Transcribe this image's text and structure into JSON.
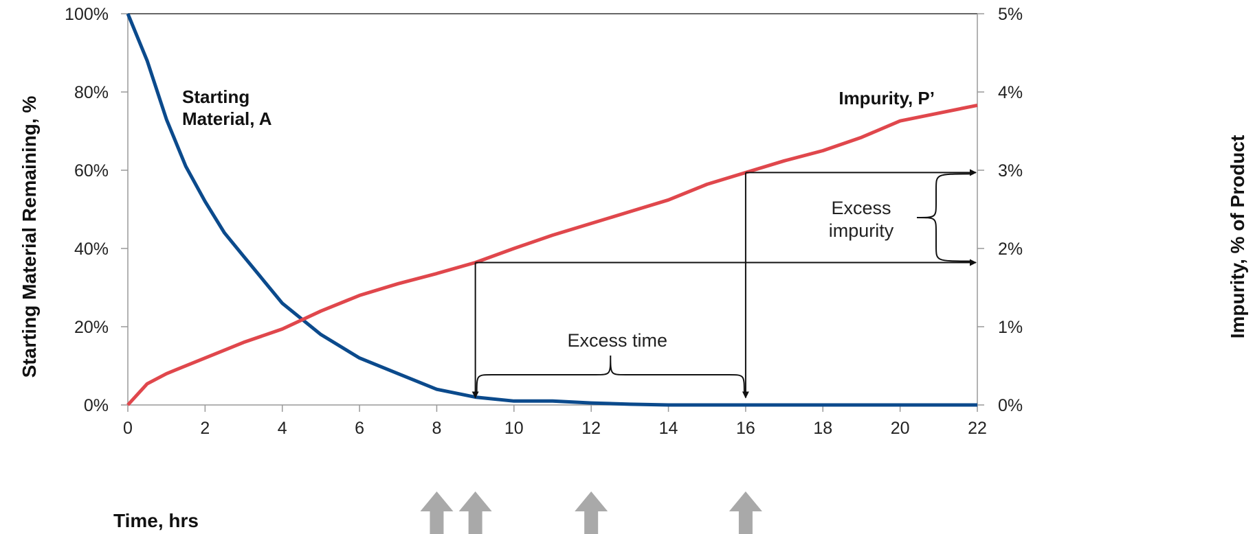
{
  "chart_data": {
    "type": "line",
    "x_label": "Time, hrs",
    "y_left_label": "Starting Material Remaining, %",
    "y_right_label": "Impurity, % of Product",
    "x_ticks": [
      "0",
      "2",
      "4",
      "6",
      "8",
      "10",
      "12",
      "14",
      "16",
      "18",
      "20",
      "22"
    ],
    "y_left_ticks": [
      "0%",
      "20%",
      "40%",
      "60%",
      "80%",
      "100%"
    ],
    "y_right_ticks": [
      "0%",
      "1%",
      "2%",
      "3%",
      "4%",
      "5%"
    ],
    "xlim": [
      0,
      22
    ],
    "ylim_left": [
      0,
      100
    ],
    "ylim_right": [
      0,
      5
    ],
    "series": [
      {
        "label_lines": [
          "Starting",
          "Material, A"
        ],
        "axis": "left",
        "color": "#0b4a8c",
        "x": [
          0,
          0.5,
          1,
          1.5,
          2,
          2.5,
          3,
          4,
          5,
          6,
          7,
          8,
          9,
          10,
          11,
          12,
          13,
          14,
          15,
          16,
          17,
          18,
          19,
          20,
          21,
          22
        ],
        "y": [
          100,
          88,
          73,
          61,
          52,
          44,
          38,
          26,
          18,
          12,
          8,
          4,
          2,
          1,
          1,
          0.5,
          0.2,
          0,
          0,
          0,
          0,
          0,
          0,
          0,
          0,
          0
        ]
      },
      {
        "label_lines": [
          "Impurity, P’"
        ],
        "axis": "right",
        "color": "#e0474c",
        "x": [
          0,
          0.5,
          1,
          2,
          2.5,
          3,
          4,
          5,
          6,
          7,
          8,
          9,
          10,
          11,
          12,
          13,
          14,
          15,
          16,
          17,
          18,
          19,
          20,
          21,
          22
        ],
        "y": [
          0,
          0.27,
          0.4,
          0.6,
          0.7,
          0.8,
          0.97,
          1.2,
          1.4,
          1.55,
          1.68,
          1.82,
          2.0,
          2.17,
          2.32,
          2.47,
          2.62,
          2.82,
          2.97,
          3.12,
          3.25,
          3.42,
          3.63,
          3.73,
          3.83
        ]
      }
    ],
    "annotations": {
      "excess_time": "Excess time",
      "excess_impurity_lines": [
        "Excess",
        "impurity"
      ],
      "marker_times": [
        9,
        16
      ],
      "arrow_times": [
        8,
        9,
        12,
        16
      ]
    }
  }
}
